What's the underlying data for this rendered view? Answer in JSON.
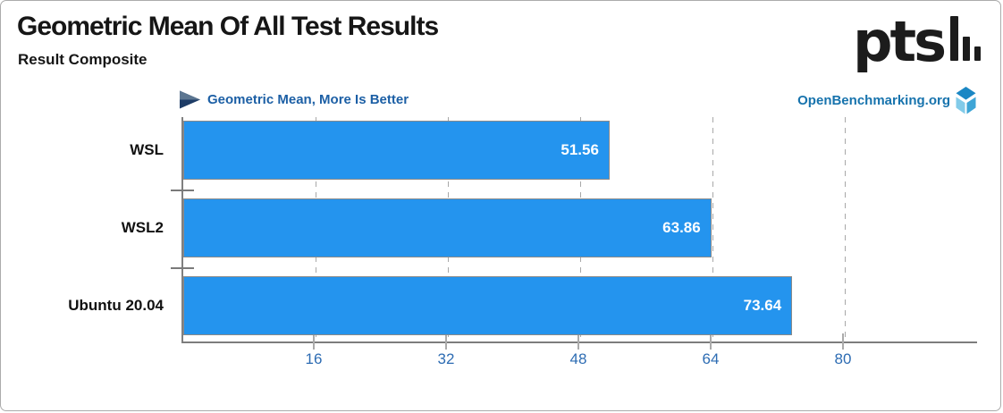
{
  "header": {
    "title": "Geometric Mean Of All Test Results",
    "subtitle": "Result Composite"
  },
  "branding": {
    "logo_text": "pts",
    "logo_icon": "bar-chart-bars",
    "site_link": "OpenBenchmarking.org",
    "site_icon": "openbenchmarking-cube",
    "link_color": "#1773AD",
    "cube_colors": {
      "top": "#1B87C4",
      "left": "#82CBE9",
      "right": "#3EA5D6"
    }
  },
  "legend": {
    "icon": "play-arrow",
    "text": "Geometric Mean, More Is Better",
    "color": "#1C5FA5"
  },
  "chart_data": {
    "type": "bar",
    "orientation": "horizontal",
    "title": "Geometric Mean Of All Test Results",
    "subtitle": "Result Composite",
    "annotation": "Geometric Mean, More Is Better",
    "categories": [
      "WSL",
      "WSL2",
      "Ubuntu 20.04"
    ],
    "values": [
      51.56,
      63.86,
      73.64
    ],
    "xticks": [
      "16",
      "32",
      "48",
      "64",
      "80"
    ],
    "xlim": [
      0,
      96
    ],
    "grid": "vertical-dashed",
    "legend_position": "top-left",
    "bar_color": "#2494EE",
    "bar_border_color": "#8A8A8A",
    "value_label_color": "#FFFFFF",
    "tick_label_color": "#2D6CB3"
  }
}
